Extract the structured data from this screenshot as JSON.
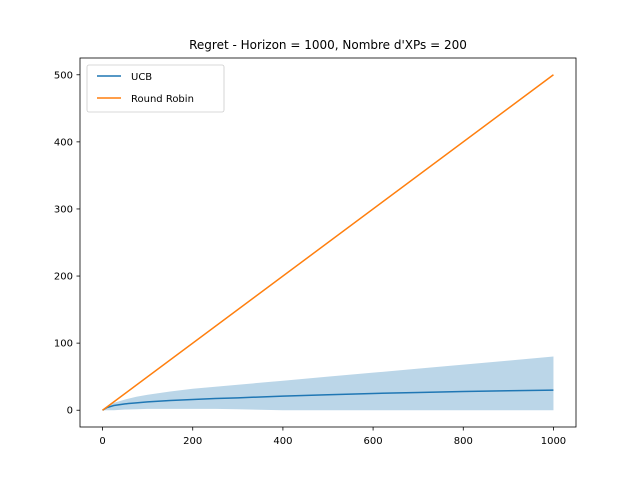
{
  "chart_data": {
    "type": "line",
    "title": "Regret - Horizon = 1000, Nombre d'XPs = 200",
    "xlabel": "",
    "ylabel": "",
    "xlim": [
      -50,
      1050
    ],
    "ylim": [
      -25,
      525
    ],
    "x_ticks": [
      0,
      200,
      400,
      600,
      800,
      1000
    ],
    "y_ticks": [
      0,
      100,
      200,
      300,
      400,
      500
    ],
    "grid": false,
    "legend_position": "upper-left",
    "series": [
      {
        "name": "UCB",
        "color": "#1f77b4",
        "x": [
          0,
          10,
          25,
          50,
          75,
          100,
          150,
          200,
          250,
          300,
          400,
          500,
          600,
          700,
          800,
          900,
          1000
        ],
        "y": [
          0,
          4,
          7,
          9.5,
          11,
          12.5,
          14.5,
          16,
          17.5,
          18.5,
          21,
          23,
          25,
          26.5,
          28,
          29,
          30
        ],
        "band_lower": [
          0,
          0,
          0,
          1,
          1.5,
          2,
          2,
          2,
          2,
          1.5,
          0,
          0,
          0,
          0,
          0,
          0,
          0
        ],
        "band_upper": [
          0,
          6,
          11,
          16,
          20,
          23,
          28,
          32,
          35,
          38,
          44,
          50,
          56,
          62,
          68,
          74,
          80
        ],
        "band_color": "#1f77b4"
      },
      {
        "name": "Round Robin",
        "color": "#ff7f0e",
        "x": [
          0,
          1000
        ],
        "y": [
          0,
          500
        ]
      }
    ]
  }
}
